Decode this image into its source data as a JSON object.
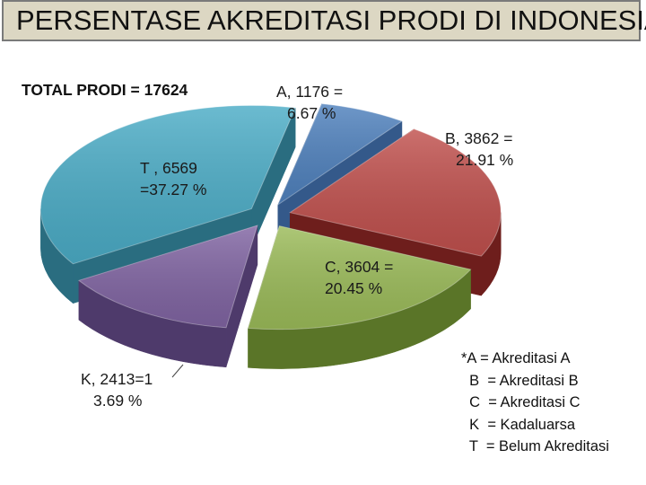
{
  "page": {
    "title": "PERSENTASE  AKREDITASI PRODI DI INDONESIA"
  },
  "chart_data": {
    "type": "pie",
    "title": "TOTAL PRODI = 17624",
    "slices": [
      {
        "key": "A",
        "value": 1176,
        "percent": 6.67,
        "label_lines": [
          "A, 1176 =",
          "6.67 %"
        ],
        "color": "#4f81bd",
        "dark": "#34598a",
        "exploded": true
      },
      {
        "key": "B",
        "value": 3862,
        "percent": 21.91,
        "label_lines": [
          "B, 3862 =",
          "21.91 %"
        ],
        "color": "#c0504d",
        "dark": "#6e1e1c",
        "exploded": true
      },
      {
        "key": "C",
        "value": 3604,
        "percent": 20.45,
        "label_lines": [
          "C, 3604 =",
          "20.45 %"
        ],
        "color": "#9bbb59",
        "dark": "#5a7528",
        "exploded": true
      },
      {
        "key": "K",
        "value": 2413,
        "percent": 13.69,
        "label_lines": [
          "K, 2413=1",
          "3.69 %"
        ],
        "color": "#8064a2",
        "dark": "#4e3a6b",
        "exploded": true
      },
      {
        "key": "T",
        "value": 6569,
        "percent": 37.27,
        "label_lines": [
          "T , 6569",
          "=37.27 %"
        ],
        "color": "#4bacc6",
        "dark": "#2a6d80",
        "exploded": true
      }
    ],
    "legend": [
      "*A = Akreditasi A",
      "  B  = Akreditasi B",
      "  C  = Akreditasi C",
      "  K  = Kadaluarsa",
      "  T  = Belum Akreditasi"
    ]
  }
}
